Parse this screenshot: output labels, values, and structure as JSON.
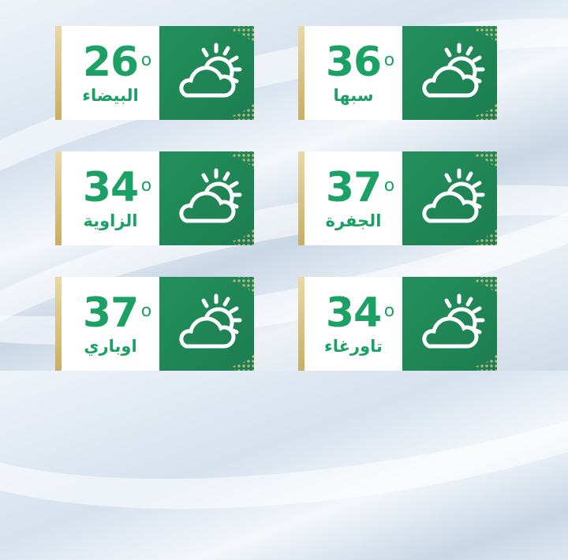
{
  "cards": [
    {
      "temp": "26",
      "unit": "o",
      "city": "البيضاء",
      "icon": "partly-cloudy-icon"
    },
    {
      "temp": "36",
      "unit": "o",
      "city": "سبها",
      "icon": "partly-cloudy-icon"
    },
    {
      "temp": "34",
      "unit": "o",
      "city": "الزاوية",
      "icon": "partly-cloudy-icon"
    },
    {
      "temp": "37",
      "unit": "o",
      "city": "الجفرة",
      "icon": "partly-cloudy-icon"
    },
    {
      "temp": "37",
      "unit": "o",
      "city": "اوباري",
      "icon": "partly-cloudy-icon"
    },
    {
      "temp": "34",
      "unit": "o",
      "city": "تاورغاء",
      "icon": "partly-cloudy-icon"
    }
  ],
  "colors": {
    "green": "#1f8a5a",
    "text": "#1aa163",
    "gold": "#d4bb73"
  }
}
